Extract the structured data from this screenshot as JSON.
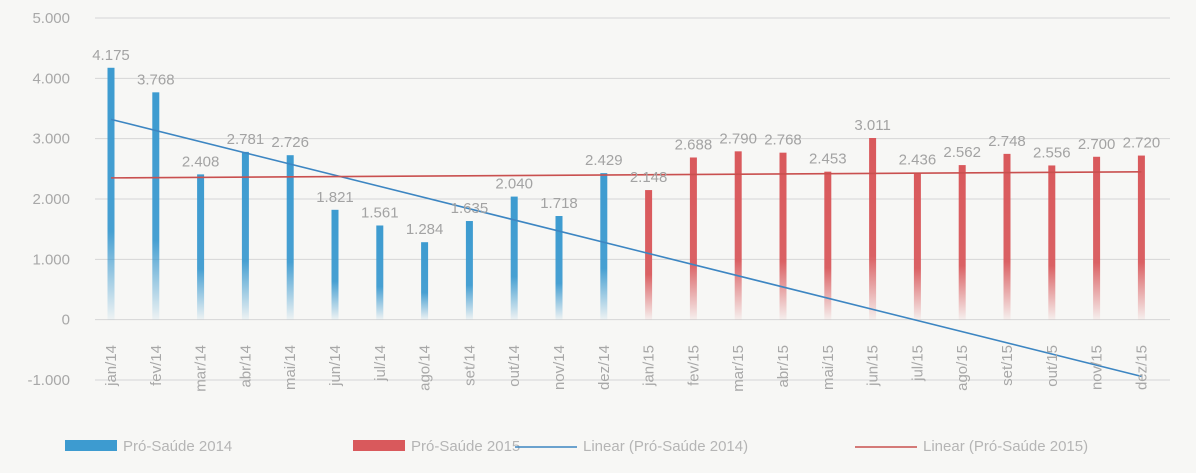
{
  "chart_data": {
    "type": "bar",
    "categories": [
      "jan/14",
      "fev/14",
      "mar/14",
      "abr/14",
      "mai/14",
      "jun/14",
      "jul/14",
      "ago/14",
      "set/14",
      "out/14",
      "nov/14",
      "dez/14",
      "jan/15",
      "fev/15",
      "mar/15",
      "abr/15",
      "mai/15",
      "jun/15",
      "jul/15",
      "ago/15",
      "set/15",
      "out/15",
      "nov/15",
      "dez/15"
    ],
    "series": [
      {
        "name": "Pró-Saúde 2014",
        "color": "#3d9bd0",
        "values": [
          4175,
          3768,
          2408,
          2781,
          2726,
          1821,
          1561,
          1284,
          1635,
          2040,
          1718,
          2429,
          null,
          null,
          null,
          null,
          null,
          null,
          null,
          null,
          null,
          null,
          null,
          null
        ],
        "labels": [
          "4.175",
          "3.768",
          "2.408",
          "2.781",
          "2.726",
          "1.821",
          "1.561",
          "1.284",
          "1.635",
          "2.040",
          "1.718",
          "2.429",
          "",
          "",
          "",
          "",
          "",
          "",
          "",
          "",
          "",
          "",
          "",
          ""
        ]
      },
      {
        "name": "Pró-Saúde 2015",
        "color": "#d9595c",
        "values": [
          null,
          null,
          null,
          null,
          null,
          null,
          null,
          null,
          null,
          null,
          null,
          null,
          2148,
          2688,
          2790,
          2768,
          2453,
          3011,
          2436,
          2562,
          2748,
          2556,
          2700,
          2720
        ],
        "labels": [
          "",
          "",
          "",
          "",
          "",
          "",
          "",
          "",
          "",
          "",
          "",
          "",
          "2.148",
          "2.688",
          "2.790",
          "2.768",
          "2.453",
          "3.011",
          "2.436",
          "2.562",
          "2.748",
          "2.556",
          "2.700",
          "2.720"
        ]
      }
    ],
    "trendlines": [
      {
        "name": "Linear (Pró-Saúde 2014)",
        "color": "#3d86c2",
        "from": {
          "category": "jan/14",
          "value": 3320
        },
        "to": {
          "category": "dez/15",
          "value": -940
        }
      },
      {
        "name": "Linear (Pró-Saúde 2015)",
        "color": "#c9504f",
        "from": {
          "category": "jan/14",
          "value": 2350
        },
        "to": {
          "category": "dez/15",
          "value": 2450
        }
      }
    ],
    "ylim": [
      -1000,
      5000
    ],
    "yticks": [
      -1000,
      0,
      1000,
      2000,
      3000,
      4000,
      5000
    ],
    "ytick_labels": [
      "-1.000",
      "0",
      "1.000",
      "2.000",
      "3.000",
      "4.000",
      "5.000"
    ],
    "grid": true,
    "legend_position": "bottom",
    "title": "",
    "xlabel": "",
    "ylabel": ""
  }
}
